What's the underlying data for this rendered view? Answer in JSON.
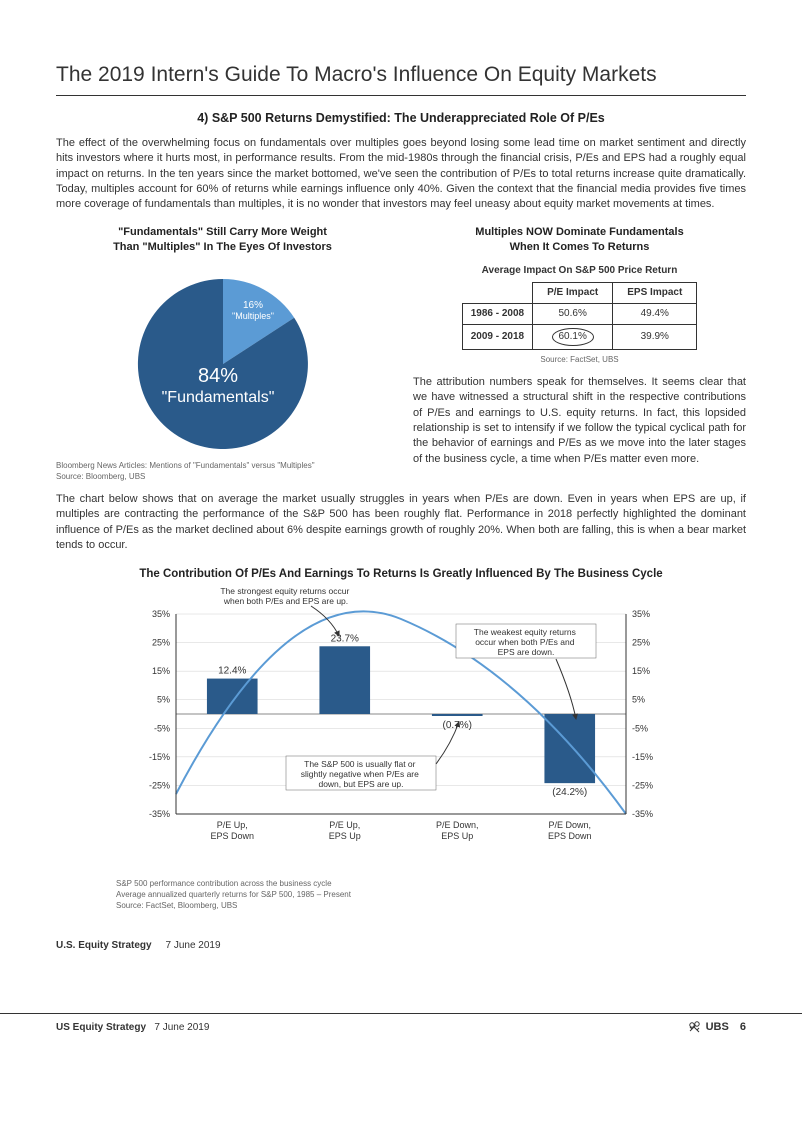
{
  "page_title": "The 2019 Intern's Guide To Macro's Influence On Equity Markets",
  "section_heading": "4) S&P 500 Returns Demystified: The Underappreciated Role Of P/Es",
  "para_intro": "The effect of the overwhelming focus on fundamentals over multiples goes beyond losing some lead time on market sentiment and directly hits investors where it hurts most, in performance results. From the mid-1980s through the financial crisis, P/Es and EPS had a roughly equal impact on returns. In the ten years since the market bottomed, we've seen the contribution of P/Es to total returns increase quite dramatically. Today, multiples account for 60% of returns while earnings influence only 40%. Given the context that the financial media provides five times more coverage of fundamentals than multiples, it is no wonder that investors may feel uneasy about equity market movements at times.",
  "pie": {
    "title_line1": "\"Fundamentals\" Still Carry More Weight",
    "title_line2": "Than \"Multiples\" In The Eyes Of Investors",
    "slices": [
      {
        "label": "\"Multiples\"",
        "pct_label": "16%",
        "value": 16,
        "color": "#5b9bd5"
      },
      {
        "label": "\"Fundamentals\"",
        "pct_label": "84%",
        "value": 84,
        "color": "#2a5a8a"
      }
    ],
    "source": "Bloomberg News Articles: Mentions of \"Fundamentals\" versus \"Multiples\"\nSource: Bloomberg, UBS"
  },
  "impact_table": {
    "title_line1": "Multiples NOW Dominate Fundamentals",
    "title_line2": "When It Comes To Returns",
    "subtitle": "Average Impact On S&P 500 Price Return",
    "columns": [
      "",
      "P/E Impact",
      "EPS Impact"
    ],
    "rows": [
      {
        "period": "1986 - 2008",
        "pe": "50.6%",
        "eps": "49.4%",
        "circle_pe": false
      },
      {
        "period": "2009 - 2018",
        "pe": "60.1%",
        "eps": "39.9%",
        "circle_pe": true
      }
    ],
    "source": "Source: FactSet, UBS"
  },
  "para_attr": "The attribution numbers speak for themselves. It seems clear that we have witnessed a structural shift in the respective contributions of P/Es and earnings to U.S. equity returns. In fact, this lopsided relationship is set to intensify if we follow the typical cyclical path for the behavior of earnings and P/Es as we move into the later stages of the business cycle, a time when P/Es matter even more.",
  "para_chart_intro": "The chart below shows that on average the market usually struggles in years when P/Es are down. Even in years when EPS are up, if multiples are contracting the performance of the S&P 500 has been roughly flat. Performance in 2018 perfectly highlighted the dominant influence of P/Es as the market declined about 6% despite earnings growth of roughly 20%. When both are falling, this is when a bear market tends to occur.",
  "bar_chart": {
    "title": "The Contribution Of P/Es And Earnings To Returns Is Greatly Influenced By The Business Cycle",
    "y_min": -35,
    "y_max": 35,
    "y_step": 10,
    "y_ticks": [
      "35%",
      "25%",
      "15%",
      "5%",
      "-5%",
      "-15%",
      "-25%",
      "-35%"
    ],
    "categories": [
      {
        "line1": "P/E Up,",
        "line2": "EPS Down",
        "value": 12.4,
        "label": "12.4%"
      },
      {
        "line1": "P/E Up,",
        "line2": "EPS Up",
        "value": 23.7,
        "label": "23.7%"
      },
      {
        "line1": "P/E Down,",
        "line2": "EPS Up",
        "value": -0.7,
        "label": "(0.7%)"
      },
      {
        "line1": "P/E Down,",
        "line2": "EPS Down",
        "value": -24.2,
        "label": "(24.2%)"
      }
    ],
    "bar_color": "#2a5a8a",
    "curve_color": "#5b9bd5",
    "grid_color": "#d0d0d0",
    "annotations": {
      "top_left": "The strongest equity returns occur when both P/Es and EPS are up.",
      "top_right": "The weakest equity returns occur when both P/Es and EPS are down.",
      "bottom_mid": "The S&P 500 is usually flat or slightly negative when P/Es are down, but EPS are up."
    },
    "source": "S&P 500 performance contribution across the business cycle\nAverage annualized quarterly returns for S&P 500, 1985 – Present\nSource: FactSet, Bloomberg, UBS"
  },
  "byline_bold": "U.S. Equity Strategy",
  "byline_date": "7 June 2019",
  "footer_left_bold": "US Equity Strategy",
  "footer_left_date": "7 June 2019",
  "footer_brand": "UBS",
  "footer_page": "6"
}
